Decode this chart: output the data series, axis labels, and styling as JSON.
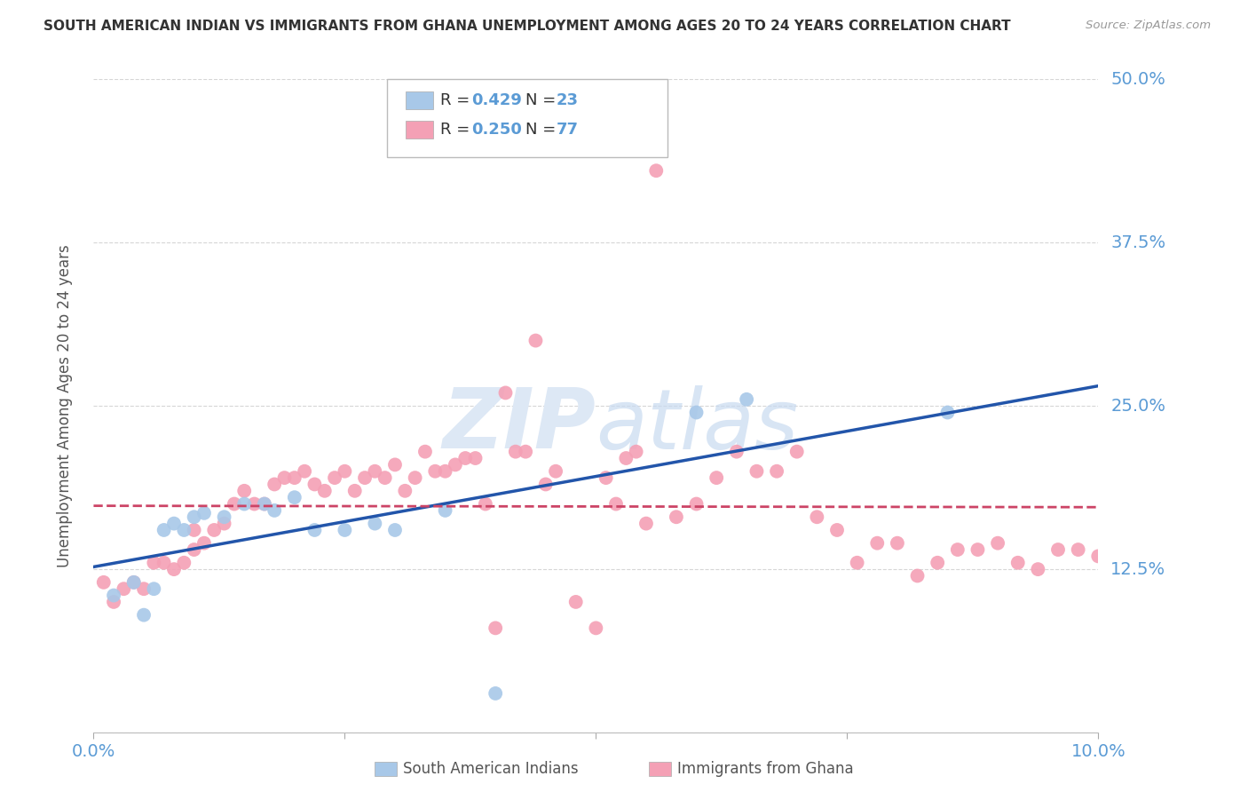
{
  "title": "SOUTH AMERICAN INDIAN VS IMMIGRANTS FROM GHANA UNEMPLOYMENT AMONG AGES 20 TO 24 YEARS CORRELATION CHART",
  "source": "Source: ZipAtlas.com",
  "ylabel": "Unemployment Among Ages 20 to 24 years",
  "xlim": [
    0.0,
    0.1
  ],
  "ylim": [
    0.0,
    0.5
  ],
  "blue_R": 0.429,
  "blue_N": 23,
  "pink_R": 0.25,
  "pink_N": 77,
  "blue_color": "#a8c8e8",
  "pink_color": "#f4a0b5",
  "blue_line_color": "#2255aa",
  "pink_line_color": "#cc4466",
  "legend_label_blue": "South American Indians",
  "legend_label_pink": "Immigrants from Ghana",
  "background_color": "#ffffff",
  "grid_color": "#cccccc",
  "title_color": "#333333",
  "axis_label_color": "#5b9bd5",
  "blue_scatter_x": [
    0.002,
    0.004,
    0.005,
    0.006,
    0.007,
    0.008,
    0.009,
    0.01,
    0.011,
    0.013,
    0.015,
    0.017,
    0.018,
    0.02,
    0.022,
    0.025,
    0.028,
    0.03,
    0.035,
    0.04,
    0.06,
    0.065,
    0.085
  ],
  "blue_scatter_y": [
    0.105,
    0.115,
    0.09,
    0.11,
    0.155,
    0.16,
    0.155,
    0.165,
    0.168,
    0.165,
    0.175,
    0.175,
    0.17,
    0.18,
    0.155,
    0.155,
    0.16,
    0.155,
    0.17,
    0.03,
    0.245,
    0.255,
    0.245
  ],
  "pink_scatter_x": [
    0.001,
    0.002,
    0.003,
    0.004,
    0.005,
    0.006,
    0.007,
    0.008,
    0.009,
    0.01,
    0.01,
    0.011,
    0.012,
    0.013,
    0.014,
    0.015,
    0.016,
    0.017,
    0.018,
    0.019,
    0.02,
    0.021,
    0.022,
    0.023,
    0.024,
    0.025,
    0.026,
    0.027,
    0.028,
    0.029,
    0.03,
    0.031,
    0.032,
    0.033,
    0.034,
    0.035,
    0.036,
    0.037,
    0.038,
    0.039,
    0.04,
    0.041,
    0.042,
    0.043,
    0.044,
    0.045,
    0.046,
    0.048,
    0.05,
    0.051,
    0.052,
    0.053,
    0.054,
    0.055,
    0.056,
    0.058,
    0.06,
    0.062,
    0.064,
    0.066,
    0.068,
    0.07,
    0.072,
    0.074,
    0.076,
    0.078,
    0.08,
    0.082,
    0.084,
    0.086,
    0.088,
    0.09,
    0.092,
    0.094,
    0.096,
    0.098,
    0.1
  ],
  "pink_scatter_y": [
    0.115,
    0.1,
    0.11,
    0.115,
    0.11,
    0.13,
    0.13,
    0.125,
    0.13,
    0.14,
    0.155,
    0.145,
    0.155,
    0.16,
    0.175,
    0.185,
    0.175,
    0.175,
    0.19,
    0.195,
    0.195,
    0.2,
    0.19,
    0.185,
    0.195,
    0.2,
    0.185,
    0.195,
    0.2,
    0.195,
    0.205,
    0.185,
    0.195,
    0.215,
    0.2,
    0.2,
    0.205,
    0.21,
    0.21,
    0.175,
    0.08,
    0.26,
    0.215,
    0.215,
    0.3,
    0.19,
    0.2,
    0.1,
    0.08,
    0.195,
    0.175,
    0.21,
    0.215,
    0.16,
    0.43,
    0.165,
    0.175,
    0.195,
    0.215,
    0.2,
    0.2,
    0.215,
    0.165,
    0.155,
    0.13,
    0.145,
    0.145,
    0.12,
    0.13,
    0.14,
    0.14,
    0.145,
    0.13,
    0.125,
    0.14,
    0.14,
    0.135
  ]
}
